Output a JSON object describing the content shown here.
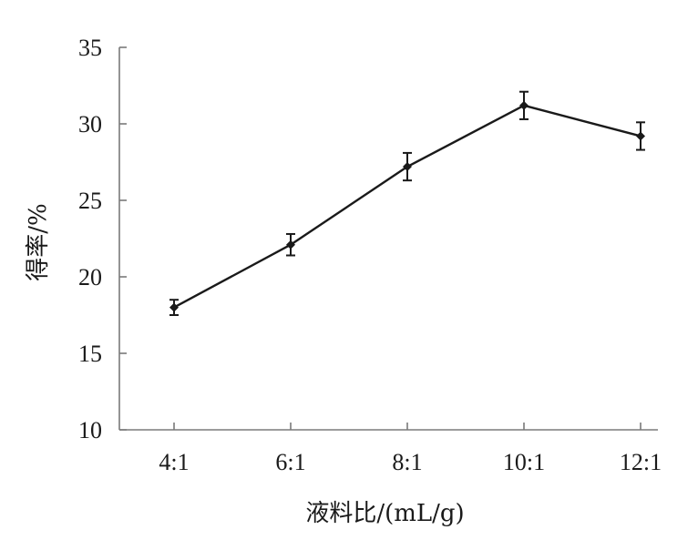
{
  "chart_data": {
    "type": "line",
    "title": "",
    "xlabel": "液料比/(mL/g)",
    "ylabel": "得率/%",
    "categories": [
      "4:1",
      "6:1",
      "8:1",
      "10:1",
      "12:1"
    ],
    "series": [
      {
        "values": [
          18.0,
          22.1,
          27.2,
          31.2,
          29.2
        ],
        "errors": [
          0.5,
          0.7,
          0.9,
          0.9,
          0.9
        ]
      }
    ],
    "ylim": [
      10,
      35
    ],
    "yticks": [
      10,
      15,
      20,
      25,
      30,
      35
    ],
    "grid": false,
    "legend": "none",
    "colors": {
      "line": "#1a1a1a",
      "axis": "#7a7a7a"
    }
  }
}
